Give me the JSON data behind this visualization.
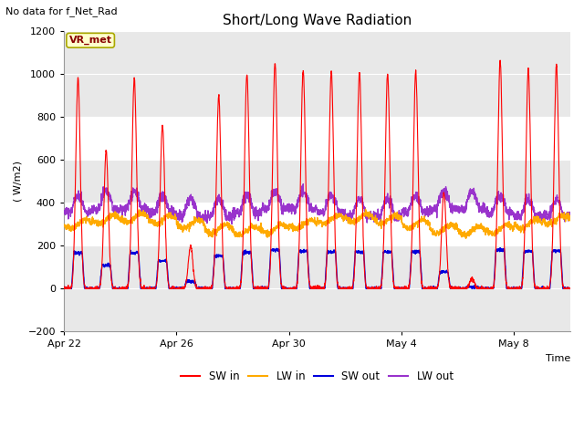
{
  "title": "Short/Long Wave Radiation",
  "subtitle": "No data for f_Net_Rad",
  "ylabel": "( W/m2)",
  "xlabel": "Time",
  "ylim": [
    -200,
    1200
  ],
  "yticks": [
    -200,
    0,
    200,
    400,
    600,
    800,
    1000,
    1200
  ],
  "xtick_labels": [
    "Apr 22",
    "Apr 26",
    "Apr 30",
    "May 4",
    "May 8"
  ],
  "xtick_positions": [
    0,
    4,
    8,
    12,
    16
  ],
  "background_color": "#ffffff",
  "plot_bg_color": "#ffffff",
  "band_color": "#e8e8e8",
  "legend_label": "VR_met",
  "legend_box_color": "#ffffcc",
  "legend_border_color": "#aaa800",
  "series": {
    "SW_in": {
      "color": "#ff0000",
      "label": "SW in",
      "linewidth": 0.8
    },
    "LW_in": {
      "color": "#ffaa00",
      "label": "LW in",
      "linewidth": 1.0
    },
    "SW_out": {
      "color": "#0000dd",
      "label": "SW out",
      "linewidth": 1.0
    },
    "LW_out": {
      "color": "#9933cc",
      "label": "LW out",
      "linewidth": 1.0
    }
  },
  "num_days": 18,
  "points_per_day": 144,
  "figsize": [
    6.4,
    4.8
  ],
  "dpi": 100
}
